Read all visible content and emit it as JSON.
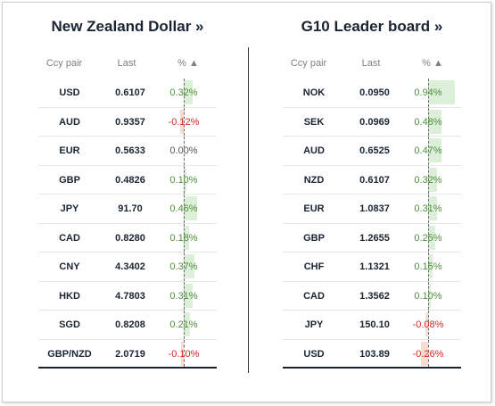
{
  "left": {
    "title": "New Zealand Dollar »",
    "headers": {
      "pair": "Ccy pair",
      "last": "Last",
      "pct": "% ▲"
    },
    "rows": [
      {
        "pair": "USD",
        "last": "0.6107",
        "pct": "0.32%",
        "value": 0.32
      },
      {
        "pair": "AUD",
        "last": "0.9357",
        "pct": "-0.12%",
        "value": -0.12
      },
      {
        "pair": "EUR",
        "last": "0.5633",
        "pct": "0.00%",
        "value": 0.0
      },
      {
        "pair": "GBP",
        "last": "0.4826",
        "pct": "0.10%",
        "value": 0.1
      },
      {
        "pair": "JPY",
        "last": "91.70",
        "pct": "0.46%",
        "value": 0.46
      },
      {
        "pair": "CAD",
        "last": "0.8280",
        "pct": "0.18%",
        "value": 0.18
      },
      {
        "pair": "CNY",
        "last": "4.3402",
        "pct": "0.37%",
        "value": 0.37
      },
      {
        "pair": "HKD",
        "last": "4.7803",
        "pct": "0.31%",
        "value": 0.31
      },
      {
        "pair": "SGD",
        "last": "0.8208",
        "pct": "0.21%",
        "value": 0.21
      },
      {
        "pair": "GBP/NZD",
        "last": "2.0719",
        "pct": "-0.10%",
        "value": -0.1
      }
    ]
  },
  "right": {
    "title": "G10 Leader board »",
    "headers": {
      "pair": "Ccy pair",
      "last": "Last",
      "pct": "% ▲"
    },
    "rows": [
      {
        "pair": "NOK",
        "last": "0.0950",
        "pct": "0.94%",
        "value": 0.94
      },
      {
        "pair": "SEK",
        "last": "0.0969",
        "pct": "0.48%",
        "value": 0.48
      },
      {
        "pair": "AUD",
        "last": "0.6525",
        "pct": "0.47%",
        "value": 0.47
      },
      {
        "pair": "NZD",
        "last": "0.6107",
        "pct": "0.32%",
        "value": 0.32
      },
      {
        "pair": "EUR",
        "last": "1.0837",
        "pct": "0.31%",
        "value": 0.31
      },
      {
        "pair": "GBP",
        "last": "1.2655",
        "pct": "0.25%",
        "value": 0.25
      },
      {
        "pair": "CHF",
        "last": "1.1321",
        "pct": "0.15%",
        "value": 0.15
      },
      {
        "pair": "CAD",
        "last": "1.3562",
        "pct": "0.10%",
        "value": 0.1
      },
      {
        "pair": "JPY",
        "last": "150.10",
        "pct": "-0.08%",
        "value": -0.08
      },
      {
        "pair": "USD",
        "last": "103.89",
        "pct": "-0.26%",
        "value": -0.26
      }
    ]
  },
  "colors": {
    "positive": "#4c8f3a",
    "negative": "#d12a22",
    "positive_bar": "#dcefd9",
    "negative_bar": "#f8dccf"
  }
}
